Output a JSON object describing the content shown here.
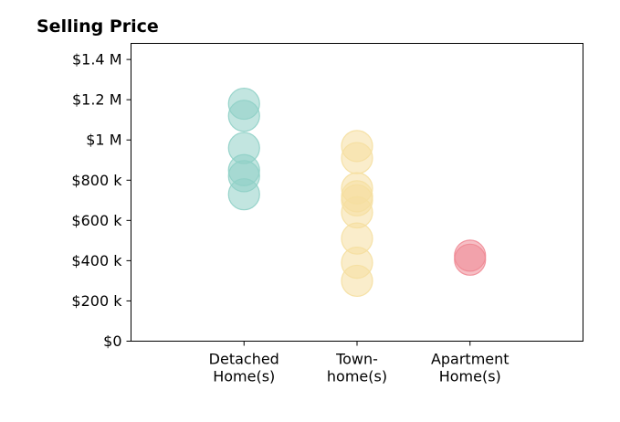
{
  "chart_data": {
    "type": "scatter",
    "title": "Selling Price",
    "xlabel": "",
    "ylabel": "",
    "categories": [
      [
        "Detached",
        "Home(s)"
      ],
      [
        "Town-",
        "home(s)"
      ],
      [
        "Apartment",
        "Home(s)"
      ]
    ],
    "y_ticks": [
      {
        "value": 0,
        "label": "$0"
      },
      {
        "value": 200000,
        "label": "$200 k"
      },
      {
        "value": 400000,
        "label": "$400 k"
      },
      {
        "value": 600000,
        "label": "$600 k"
      },
      {
        "value": 800000,
        "label": "$800 k"
      },
      {
        "value": 1000000,
        "label": "$1 M"
      },
      {
        "value": 1200000,
        "label": "$1.2 M"
      },
      {
        "value": 1400000,
        "label": "$1.4 M"
      }
    ],
    "ylim": [
      0,
      1480000
    ],
    "xlim": [
      0,
      4
    ],
    "grid": false,
    "series": [
      {
        "category_index": 1,
        "color": "#8fd0c6",
        "values": [
          1180000,
          1120000,
          960000,
          850000,
          820000,
          730000
        ]
      },
      {
        "category_index": 2,
        "color": "#f5dfa0",
        "values": [
          970000,
          910000,
          760000,
          720000,
          700000,
          640000,
          510000,
          390000,
          300000
        ]
      },
      {
        "category_index": 3,
        "color": "#ef8a95",
        "values": [
          425000,
          405000
        ]
      }
    ]
  }
}
